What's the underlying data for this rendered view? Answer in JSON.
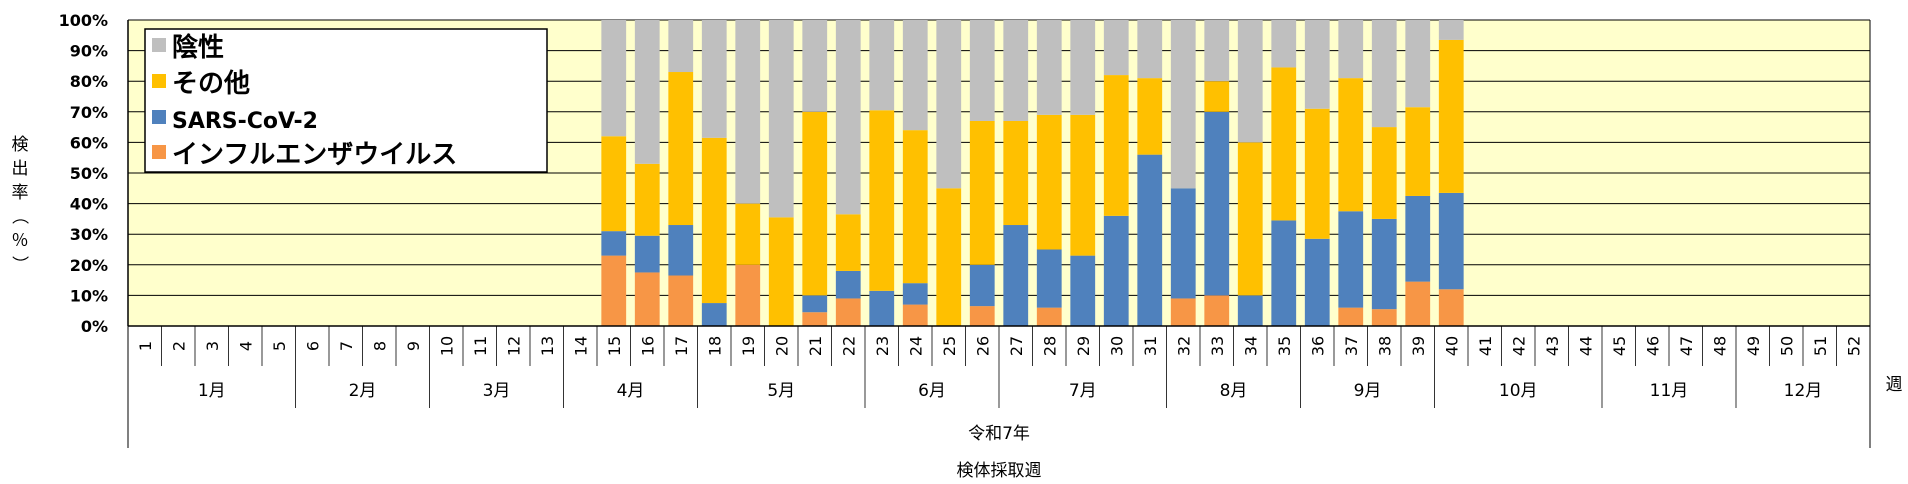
{
  "chart_data": {
    "type": "bar",
    "stacked": true,
    "percent": true,
    "title": "",
    "ylabel": "検出率（％）",
    "xlabel": "検体採取週",
    "x_unit_label": "週",
    "year_label": "令和7年",
    "ylim": [
      0,
      100
    ],
    "yticks": [
      "0%",
      "10%",
      "20%",
      "30%",
      "40%",
      "50%",
      "60%",
      "70%",
      "80%",
      "90%",
      "100%"
    ],
    "grid": true,
    "legend_position": "top-left",
    "categories": [
      "1",
      "2",
      "3",
      "4",
      "5",
      "6",
      "7",
      "8",
      "9",
      "10",
      "11",
      "12",
      "13",
      "14",
      "15",
      "16",
      "17",
      "18",
      "19",
      "20",
      "21",
      "22",
      "23",
      "24",
      "25",
      "26",
      "27",
      "28",
      "29",
      "30",
      "31",
      "32",
      "33",
      "34",
      "35",
      "36",
      "37",
      "38",
      "39",
      "40",
      "41",
      "42",
      "43",
      "44",
      "45",
      "46",
      "47",
      "48",
      "49",
      "50",
      "51",
      "52"
    ],
    "months": [
      {
        "label": "1月",
        "start": 1,
        "end": 5
      },
      {
        "label": "2月",
        "start": 6,
        "end": 9
      },
      {
        "label": "3月",
        "start": 10,
        "end": 13
      },
      {
        "label": "4月",
        "start": 14,
        "end": 17
      },
      {
        "label": "5月",
        "start": 18,
        "end": 22
      },
      {
        "label": "6月",
        "start": 23,
        "end": 26
      },
      {
        "label": "7月",
        "start": 27,
        "end": 31
      },
      {
        "label": "8月",
        "start": 32,
        "end": 35
      },
      {
        "label": "9月",
        "start": 36,
        "end": 39
      },
      {
        "label": "10月",
        "start": 40,
        "end": 44
      },
      {
        "label": "11月",
        "start": 45,
        "end": 48
      },
      {
        "label": "12月",
        "start": 49,
        "end": 52
      }
    ],
    "series": [
      {
        "name": "インフルエンザウイルス",
        "color": "#F79646",
        "values": [
          null,
          null,
          null,
          null,
          null,
          null,
          null,
          null,
          null,
          null,
          null,
          null,
          null,
          null,
          23,
          17.5,
          16.5,
          0,
          20,
          0,
          4.5,
          9,
          0,
          7,
          0,
          6.5,
          0,
          6,
          0,
          0,
          0,
          9,
          10,
          0,
          0,
          0,
          6,
          5.5,
          14.5,
          12,
          null,
          null,
          null,
          null,
          null,
          null,
          null,
          null,
          null,
          null,
          null,
          null
        ]
      },
      {
        "name": "SARS-CoV-2",
        "color": "#4F81BD",
        "values": [
          null,
          null,
          null,
          null,
          null,
          null,
          null,
          null,
          null,
          null,
          null,
          null,
          null,
          null,
          8,
          12,
          16.5,
          7.5,
          0,
          0,
          5.5,
          9,
          11.5,
          7,
          0,
          13.5,
          33,
          19,
          23,
          36,
          56,
          36,
          60,
          10,
          34.5,
          28.5,
          31.5,
          29.5,
          28,
          31.5,
          null,
          null,
          null,
          null,
          null,
          null,
          null,
          null,
          null,
          null,
          null,
          null
        ]
      },
      {
        "name": "その他",
        "color": "#FFC000",
        "values": [
          null,
          null,
          null,
          null,
          null,
          null,
          null,
          null,
          null,
          null,
          null,
          null,
          null,
          null,
          31,
          23.5,
          50,
          54,
          20,
          35.5,
          60,
          18.5,
          59,
          50,
          45,
          47,
          34,
          44,
          46,
          46,
          25,
          0,
          10,
          50,
          50,
          42.5,
          43.5,
          30,
          29,
          50,
          null,
          null,
          null,
          null,
          null,
          null,
          null,
          null,
          null,
          null,
          null,
          null
        ]
      },
      {
        "name": "陰性",
        "color": "#BFBFBF",
        "values": [
          null,
          null,
          null,
          null,
          null,
          null,
          null,
          null,
          null,
          null,
          null,
          null,
          null,
          null,
          38,
          47,
          17,
          38.5,
          60,
          64.5,
          30,
          63.5,
          29.5,
          36,
          55,
          33,
          33,
          31,
          31,
          18,
          19,
          55,
          20,
          40,
          15.5,
          29,
          19,
          35,
          28.5,
          6.5,
          null,
          null,
          null,
          null,
          null,
          null,
          null,
          null,
          null,
          null,
          null,
          null
        ]
      }
    ],
    "legend": [
      "陰性",
      "その他",
      "SARS-CoV-2",
      "インフルエンザウイルス"
    ]
  },
  "colors": {
    "plot_background": "#FFFFCC",
    "grid": "#000000"
  }
}
